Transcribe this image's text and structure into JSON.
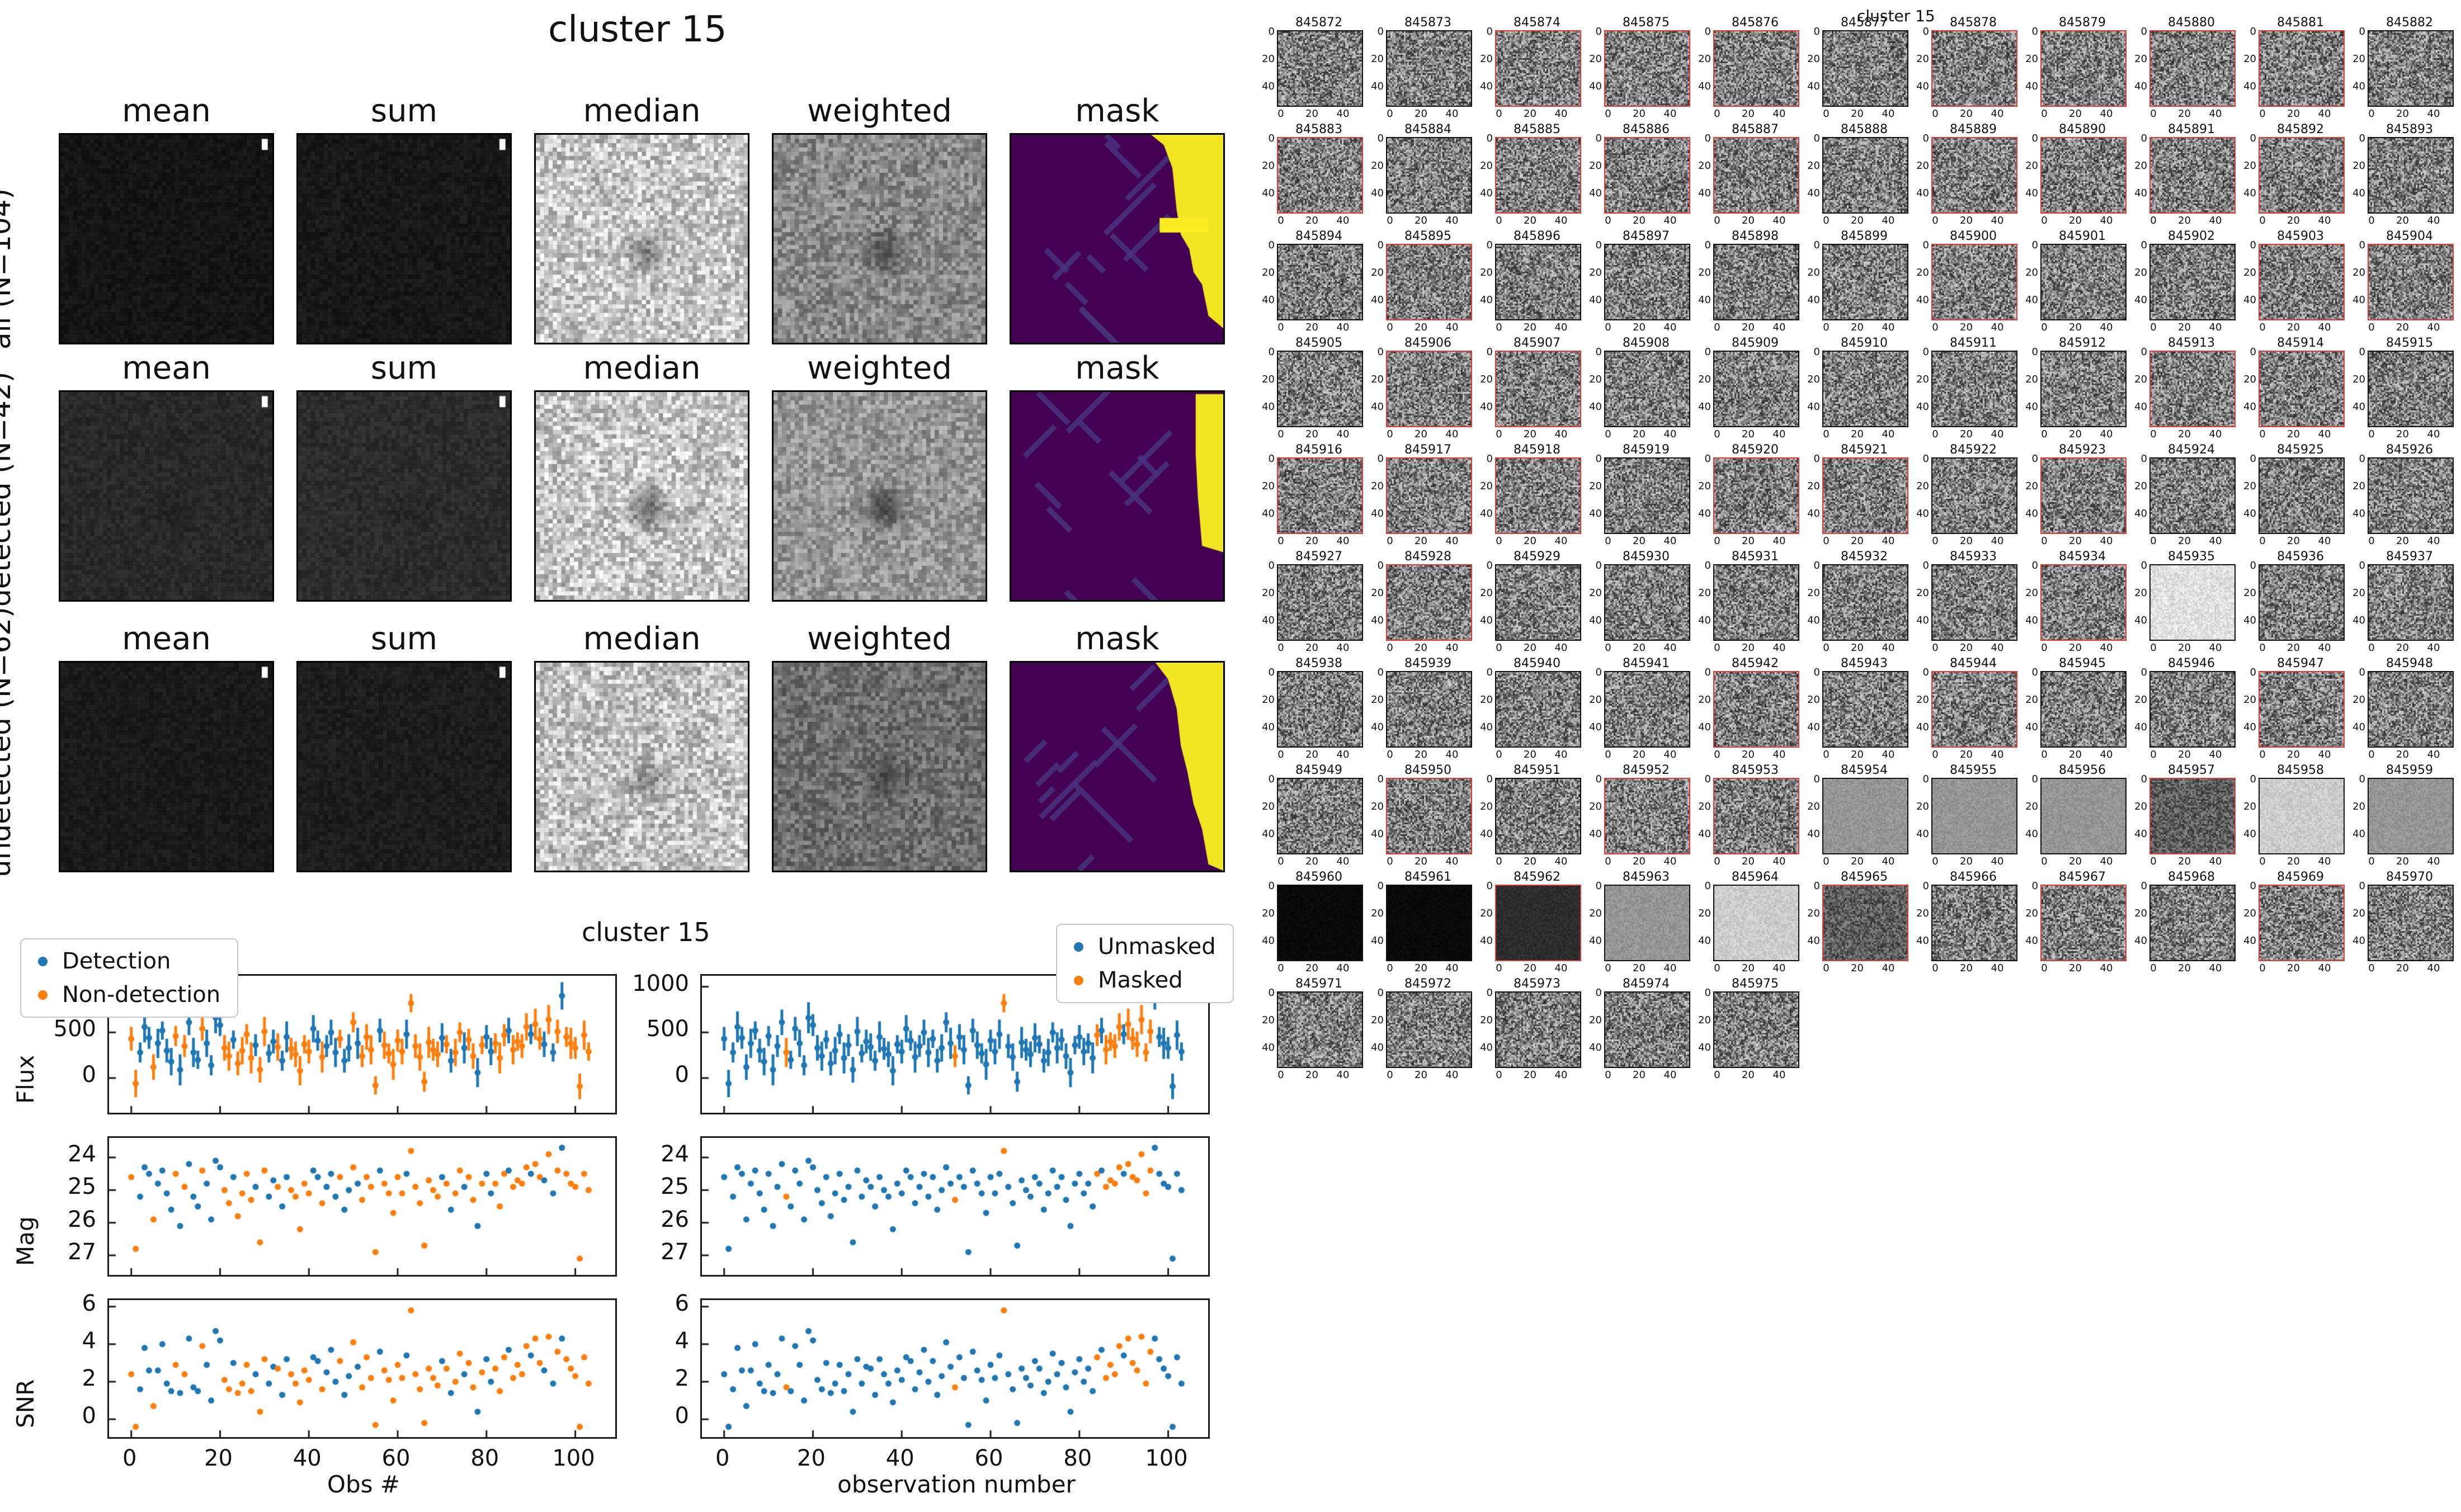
{
  "summary": {
    "title": "cluster 15",
    "col_headers": [
      "mean",
      "sum",
      "median",
      "weighted",
      "mask"
    ],
    "rows": [
      {
        "label": "all (N=104)",
        "cells": {
          "mean": {
            "base": 22,
            "amp": 16,
            "blob": 0.1
          },
          "sum": {
            "base": 25,
            "amp": 18,
            "blob": 0.1
          },
          "median": {
            "base": 200,
            "amp": 110,
            "blob": 0.38
          },
          "weighted": {
            "base": 138,
            "amp": 80,
            "blob": 0.5
          },
          "mask": "A"
        }
      },
      {
        "label": "detected (N=42)",
        "cells": {
          "mean": {
            "base": 42,
            "amp": 20,
            "blob": 0.25
          },
          "sum": {
            "base": 45,
            "amp": 22,
            "blob": 0.22
          },
          "median": {
            "base": 200,
            "amp": 110,
            "blob": 0.55
          },
          "weighted": {
            "base": 152,
            "amp": 78,
            "blob": 0.6
          },
          "mask": "B"
        }
      },
      {
        "label": "undetected (N=62)",
        "cells": {
          "mean": {
            "base": 27,
            "amp": 16,
            "blob": 0.12
          },
          "sum": {
            "base": 30,
            "amp": 18,
            "blob": 0.12
          },
          "median": {
            "base": 196,
            "amp": 110,
            "blob": 0.32
          },
          "weighted": {
            "base": 112,
            "amp": 70,
            "blob": 0.35
          },
          "mask": "C"
        }
      }
    ],
    "masks": {
      "A": {
        "poly": [
          [
            0.66,
            0
          ],
          [
            1,
            0
          ],
          [
            1,
            0.93
          ],
          [
            0.93,
            0.87
          ],
          [
            0.9,
            0.72
          ],
          [
            0.86,
            0.66
          ],
          [
            0.84,
            0.55
          ],
          [
            0.8,
            0.48
          ],
          [
            0.78,
            0.36
          ],
          [
            0.76,
            0.16
          ],
          [
            0.72,
            0.05
          ]
        ],
        "band": [
          0.7,
          0.4,
          0.93,
          0.47
        ]
      },
      "B": {
        "poly": [
          [
            0.87,
            0.01
          ],
          [
            1,
            0.01
          ],
          [
            1,
            0.77
          ],
          [
            0.9,
            0.74
          ],
          [
            0.88,
            0.5
          ],
          [
            0.87,
            0.3
          ]
        ]
      },
      "C": {
        "poly": [
          [
            0.68,
            0
          ],
          [
            1,
            0
          ],
          [
            1,
            1
          ],
          [
            0.93,
            0.97
          ],
          [
            0.9,
            0.8
          ],
          [
            0.86,
            0.68
          ],
          [
            0.83,
            0.52
          ],
          [
            0.8,
            0.4
          ],
          [
            0.78,
            0.22
          ],
          [
            0.74,
            0.08
          ]
        ]
      }
    },
    "mask_colors": {
      "bg": "#440154",
      "streak": "#46327e",
      "yellow": "#f2e522",
      "yellow_bright": "#fbed1f"
    }
  },
  "charts": {
    "title": "cluster 15",
    "xlabel_left": "Obs #",
    "xlabel_right": "observation number",
    "legend_left": [
      {
        "label": "Detection",
        "color": "#1f77b4"
      },
      {
        "label": "Non-detection",
        "color": "#ff7f0e"
      }
    ],
    "legend_right": [
      {
        "label": "Unmasked",
        "color": "#1f77b4"
      },
      {
        "label": "Masked",
        "color": "#ff7f0e"
      }
    ]
  },
  "chart_data": {
    "type": "scatter",
    "title": "cluster 15",
    "x_axis": {
      "xlabel_left": "Obs #",
      "xlabel_right": "observation number",
      "xticks": [
        0,
        20,
        40,
        60,
        80,
        100
      ],
      "xlim": [
        -5,
        109
      ]
    },
    "panels": [
      {
        "name": "flux",
        "ylabel": "Flux",
        "yticks": [
          0,
          500,
          1000
        ],
        "ylim": [
          -380,
          1120
        ],
        "errorbars": true,
        "values_key": "flux"
      },
      {
        "name": "mag",
        "ylabel": "Mag",
        "yticks": [
          24,
          25,
          26,
          27
        ],
        "ylim": [
          23.4,
          27.6
        ],
        "inverted": true,
        "values_key": "mag"
      },
      {
        "name": "snr",
        "ylabel": "SNR",
        "yticks": [
          0,
          2,
          4,
          6
        ],
        "ylim": [
          -0.95,
          6.35
        ],
        "values_key": "snr"
      }
    ],
    "colors": {
      "detection": "#1f77b4",
      "non_detection": "#ff7f0e",
      "unmasked": "#1f77b4",
      "masked": "#ff7f0e"
    },
    "n_obs": 104,
    "flux": [
      430,
      -60,
      280,
      560,
      440,
      120,
      380,
      520,
      300,
      180,
      460,
      90,
      350,
      610,
      280,
      200,
      540,
      380,
      140,
      660,
      580,
      330,
      240,
      420,
      160,
      300,
      480,
      220,
      360,
      90,
      510,
      270,
      400,
      340,
      190,
      450,
      320,
      260,
      80,
      370,
      290,
      540,
      410,
      230,
      350,
      500,
      280,
      430,
      190,
      330,
      610,
      380,
      240,
      450,
      310,
      -80,
      520,
      360,
      270,
      150,
      410,
      290,
      480,
      820,
      350,
      230,
      -40,
      390,
      310,
      260,
      440,
      370,
      190,
      280,
      500,
      330,
      420,
      240,
      60,
      360,
      450,
      290,
      380,
      220,
      470,
      520,
      310,
      400,
      350,
      560,
      480,
      590,
      430,
      370,
      640,
      280,
      510,
      900,
      450,
      380,
      330,
      -90,
      470,
      290
    ],
    "flux_err_cycle": [
      130,
      150,
      110,
      170,
      120,
      140,
      160,
      100
    ],
    "mag": [
      24.6,
      26.8,
      25.2,
      24.3,
      24.5,
      25.9,
      24.8,
      24.4,
      25.1,
      25.6,
      24.5,
      26.1,
      24.9,
      24.2,
      25.2,
      25.5,
      24.4,
      24.8,
      25.9,
      24.1,
      24.3,
      25.0,
      25.4,
      24.6,
      25.8,
      25.1,
      24.5,
      25.3,
      24.9,
      26.6,
      24.4,
      25.2,
      24.7,
      24.9,
      25.5,
      24.6,
      25.0,
      25.2,
      26.2,
      24.8,
      25.1,
      24.4,
      24.6,
      25.4,
      24.9,
      24.5,
      25.2,
      24.6,
      25.6,
      25.0,
      24.3,
      24.8,
      25.3,
      24.6,
      24.9,
      26.9,
      24.4,
      24.8,
      25.1,
      25.7,
      24.6,
      25.1,
      24.5,
      23.8,
      24.9,
      25.4,
      26.7,
      24.7,
      25.0,
      25.2,
      24.6,
      24.8,
      25.6,
      25.1,
      24.4,
      24.9,
      24.6,
      25.3,
      26.1,
      24.8,
      24.5,
      25.1,
      24.8,
      25.5,
      24.5,
      24.4,
      24.9,
      24.7,
      24.8,
      24.3,
      24.5,
      24.2,
      24.6,
      24.7,
      23.9,
      25.1,
      24.4,
      23.7,
      24.5,
      24.8,
      24.9,
      27.1,
      24.5,
      25.0
    ],
    "snr": [
      2.4,
      -0.4,
      1.6,
      3.8,
      2.6,
      0.7,
      2.6,
      4.0,
      1.9,
      1.5,
      2.9,
      1.4,
      2.4,
      4.3,
      1.7,
      1.5,
      3.9,
      2.9,
      1.0,
      4.7,
      4.2,
      2.1,
      1.6,
      3.0,
      1.4,
      1.9,
      2.9,
      1.5,
      2.4,
      0.4,
      3.2,
      1.9,
      2.8,
      2.7,
      1.3,
      3.2,
      2.4,
      1.9,
      0.9,
      2.6,
      2.1,
      3.3,
      3.1,
      1.6,
      2.5,
      3.7,
      2.0,
      3.1,
      1.3,
      2.3,
      4.1,
      2.8,
      1.7,
      3.3,
      2.2,
      -0.3,
      3.6,
      2.6,
      2.1,
      1.0,
      2.9,
      2.2,
      3.4,
      5.8,
      2.4,
      1.6,
      -0.2,
      2.7,
      2.2,
      1.8,
      3.1,
      2.7,
      1.4,
      2.0,
      3.5,
      2.4,
      3.0,
      1.7,
      0.4,
      2.5,
      3.2,
      2.0,
      2.7,
      1.5,
      3.3,
      3.7,
      2.2,
      2.9,
      2.4,
      3.9,
      3.4,
      4.3,
      3.0,
      2.6,
      4.4,
      1.9,
      3.6,
      4.3,
      3.2,
      2.7,
      2.3,
      -0.4,
      3.3,
      1.9
    ],
    "detected_obs": [
      2,
      3,
      4,
      6,
      7,
      8,
      9,
      11,
      13,
      14,
      15,
      17,
      18,
      19,
      20,
      23,
      28,
      31,
      32,
      34,
      35,
      41,
      42,
      44,
      45,
      46,
      48,
      49,
      51,
      56,
      62,
      70,
      72,
      75,
      78,
      80,
      81,
      85,
      90,
      93,
      95,
      97
    ],
    "masked_obs": [
      14,
      52,
      63,
      84,
      86,
      87,
      88,
      89,
      91,
      92,
      93,
      94,
      95,
      96
    ]
  },
  "cutouts": {
    "suptitle": "cluster 15",
    "xticks": [
      0,
      20,
      40
    ],
    "yticks": [
      0,
      20,
      40
    ],
    "red_border_color": "#e03b35",
    "ids": [
      845872,
      845873,
      845874,
      845875,
      845876,
      845877,
      845878,
      845879,
      845880,
      845881,
      845882,
      845883,
      845884,
      845885,
      845886,
      845887,
      845888,
      845889,
      845890,
      845891,
      845892,
      845893,
      845894,
      845895,
      845896,
      845897,
      845898,
      845899,
      845900,
      845901,
      845902,
      845903,
      845904,
      845905,
      845906,
      845907,
      845908,
      845909,
      845910,
      845911,
      845912,
      845913,
      845914,
      845915,
      845916,
      845917,
      845918,
      845919,
      845920,
      845921,
      845922,
      845923,
      845924,
      845925,
      845926,
      845927,
      845928,
      845929,
      845930,
      845931,
      845932,
      845933,
      845934,
      845935,
      845936,
      845937,
      845938,
      845939,
      845940,
      845941,
      845942,
      845943,
      845944,
      845945,
      845946,
      845947,
      845948,
      845949,
      845950,
      845951,
      845952,
      845953,
      845954,
      845955,
      845956,
      845957,
      845958,
      845959,
      845960,
      845961,
      845962,
      845963,
      845964,
      845965,
      845966,
      845967,
      845968,
      845969,
      845970,
      845971,
      845972,
      845973,
      845974,
      845975
    ],
    "red_ids": [
      845874,
      845875,
      845876,
      845878,
      845879,
      845880,
      845881,
      845883,
      845885,
      845886,
      845887,
      845889,
      845890,
      845891,
      845892,
      845895,
      845900,
      845903,
      845904,
      845906,
      845907,
      845913,
      845914,
      845916,
      845917,
      845918,
      845920,
      845921,
      845923,
      845928,
      845934,
      845942,
      845944,
      845947,
      845950,
      845952,
      845953,
      845957,
      845962,
      845965,
      845967,
      845969
    ],
    "variants": {
      "845935": "light",
      "845954": "smooth",
      "845955": "smooth",
      "845956": "smooth",
      "845957": "dark",
      "845958": "light-smooth",
      "845959": "smooth",
      "845960": "black",
      "845961": "black",
      "845962": "verydark",
      "845963": "smooth",
      "845964": "light-smooth",
      "845965": "dark"
    }
  }
}
